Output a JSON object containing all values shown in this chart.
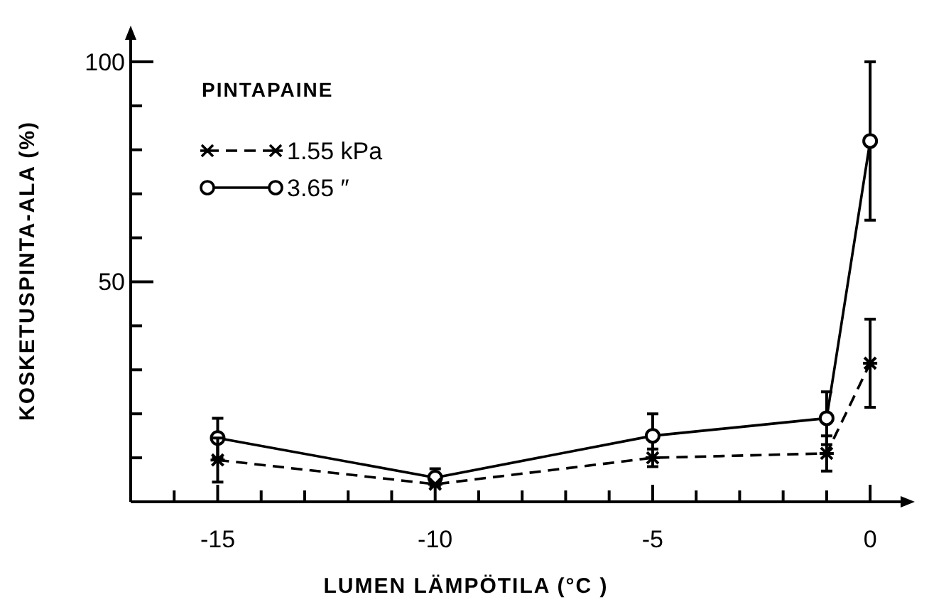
{
  "chart_data": {
    "type": "line",
    "xlabel": "LUMEN LÄMPÖTILA (°C )",
    "ylabel": "KOSKETUSPINTA-ALA (%)",
    "legend_title": "PINTAPAINE",
    "legend": "top left",
    "grid": false,
    "x": [
      -15,
      -10,
      -5,
      -1,
      0
    ],
    "series": [
      {
        "name": "1.55 kPa",
        "color": "#000000",
        "marker": "cross",
        "line_style": "dashed",
        "values": [
          9.5,
          4,
          10,
          11,
          31.5
        ],
        "errors": [
          5,
          null,
          2,
          4,
          10
        ]
      },
      {
        "name": "3.65 ″",
        "color": "#000000",
        "marker": "circle",
        "line_style": "solid",
        "values": [
          14.5,
          5.5,
          15,
          19,
          82
        ],
        "errors": [
          4.5,
          2,
          5,
          6,
          18
        ]
      }
    ],
    "xlim": [
      -17,
      0.7
    ],
    "ylim": [
      0,
      105
    ],
    "xticks": [
      {
        "value": -16,
        "label": null
      },
      -15,
      {
        "value": -14,
        "label": null
      },
      {
        "value": -13,
        "label": null
      },
      {
        "value": -12,
        "label": null
      },
      {
        "value": -11,
        "label": null
      },
      -10,
      {
        "value": -9,
        "label": null
      },
      {
        "value": -8,
        "label": null
      },
      {
        "value": -7,
        "label": null
      },
      {
        "value": -6,
        "label": null
      },
      -5,
      {
        "value": -4,
        "label": null
      },
      {
        "value": -3,
        "label": null
      },
      {
        "value": -2,
        "label": null
      },
      {
        "value": -1,
        "label": null
      },
      0
    ],
    "yticks": [
      {
        "value": 10,
        "label": null
      },
      {
        "value": 20,
        "label": null
      },
      {
        "value": 30,
        "label": null
      },
      {
        "value": 40,
        "label": null
      },
      50,
      {
        "value": 60,
        "label": null
      },
      {
        "value": 70,
        "label": null
      },
      {
        "value": 80,
        "label": null
      },
      {
        "value": 90,
        "label": null
      },
      100
    ]
  }
}
